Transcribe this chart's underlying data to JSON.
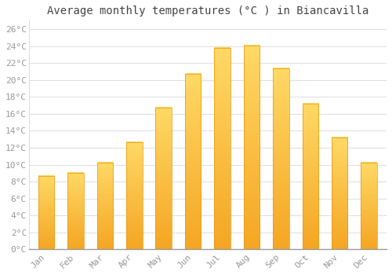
{
  "title": "Average monthly temperatures (°C ) in Biancavilla",
  "months": [
    "Jan",
    "Feb",
    "Mar",
    "Apr",
    "May",
    "Jun",
    "Jul",
    "Aug",
    "Sep",
    "Oct",
    "Nov",
    "Dec"
  ],
  "values": [
    8.7,
    9.0,
    10.2,
    12.7,
    16.7,
    20.7,
    23.8,
    24.1,
    21.4,
    17.2,
    13.2,
    10.2
  ],
  "bar_color_bottom": "#F5A623",
  "bar_color_top": "#FFD966",
  "bar_edge_color": "#E8960A",
  "background_color": "#ffffff",
  "plot_bg_color": "#ffffff",
  "grid_color": "#dddddd",
  "ylim": [
    0,
    27
  ],
  "ytick_step": 2,
  "title_fontsize": 10,
  "tick_fontsize": 8,
  "tick_color": "#999999",
  "font_family": "monospace"
}
